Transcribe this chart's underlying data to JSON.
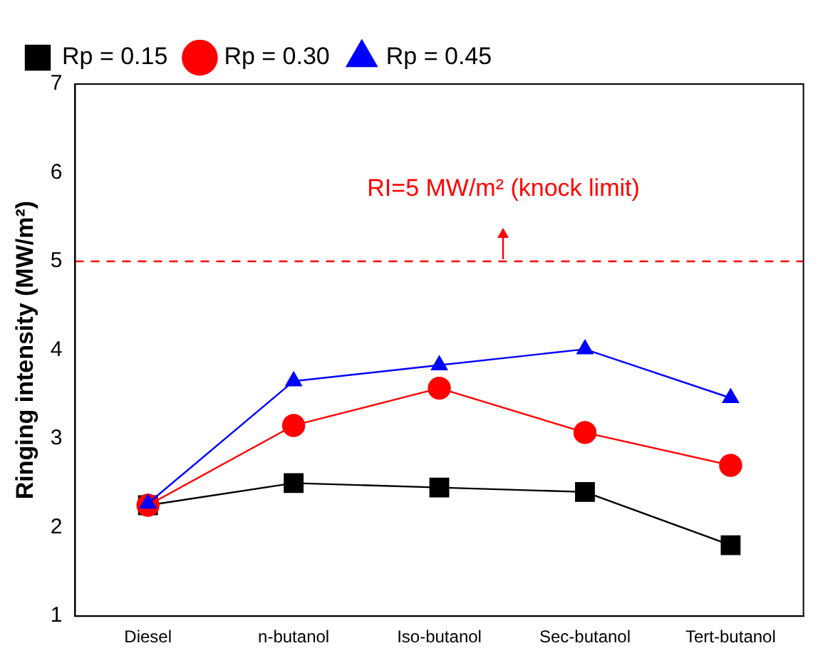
{
  "chart_data": {
    "type": "line",
    "ylabel": "Ringing intensity (MW/m²)",
    "categories": [
      "Diesel",
      "n-butanol",
      "Iso-butanol",
      "Sec-butanol",
      "Tert-butanol"
    ],
    "series": [
      {
        "name": "Rp = 0.15",
        "color": "#000000",
        "marker": "square",
        "values": [
          2.25,
          2.5,
          2.45,
          2.4,
          1.8
        ]
      },
      {
        "name": "Rp = 0.30",
        "color": "#ff0000",
        "marker": "circle",
        "values": [
          2.25,
          3.15,
          3.57,
          3.07,
          2.7
        ]
      },
      {
        "name": "Rp = 0.45",
        "color": "#0000ff",
        "marker": "triangle",
        "values": [
          2.27,
          3.65,
          3.83,
          4.01,
          3.46
        ]
      }
    ],
    "ylim": [
      1,
      7
    ],
    "yticks": [
      1,
      2,
      3,
      4,
      5,
      6,
      7
    ],
    "grid": false,
    "legend": "top left",
    "line_style": "solid",
    "ref_lines": [
      {
        "axis": "y",
        "value": 5,
        "label": "RI=5 MW/m² (knock limit)",
        "color": "#ff0000",
        "line_style": "dashed"
      }
    ]
  }
}
